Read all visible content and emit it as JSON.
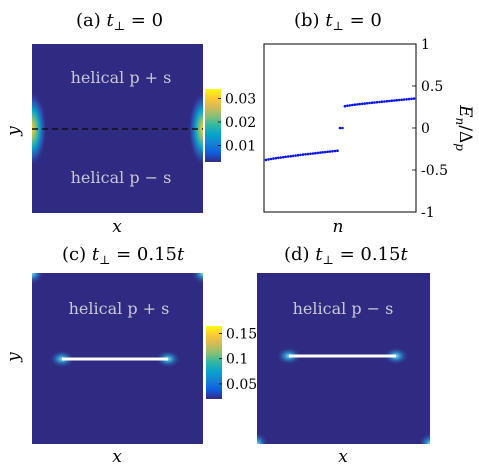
{
  "colors": {
    "background": "#2f2a82",
    "dash": "#111111",
    "defect": "#ffffff",
    "points": "#0a14e0",
    "cb_stops": [
      "#352a87",
      "#0f5cdd",
      "#1481d6",
      "#06a4ca",
      "#2eb7a4",
      "#87bf77",
      "#d1bb59",
      "#fec832",
      "#f9fb0e"
    ]
  },
  "panels": {
    "a": {
      "title_prefix": "(a)",
      "title_var": "t",
      "title_sub": "⊥",
      "title_value": " = 0",
      "upper_label": "helical p + s",
      "lower_label": "helical p − s",
      "xlabel": "x",
      "ylabel": "y"
    },
    "b": {
      "title_prefix": "(b)",
      "title_var": "t",
      "title_sub": "⊥",
      "title_value": " = 0",
      "xlabel": "n",
      "ylabel_var": "E",
      "ylabel_sub": "n",
      "ylabel_mid": "/Δ",
      "ylabel_sub2": "p"
    },
    "c": {
      "title_prefix": "(c)",
      "title_var": "t",
      "title_sub": "⊥",
      "title_value": " = 0.15",
      "title_unit": "t",
      "label": "helical p + s",
      "xlabel": "x",
      "ylabel": "y"
    },
    "d": {
      "title_prefix": "(d)",
      "title_var": "t",
      "title_sub": "⊥",
      "title_value": " = 0.15",
      "title_unit": "t",
      "label": "helical p − s",
      "xlabel": "x"
    }
  },
  "colorbars": {
    "top": {
      "ticks": [
        "0.03",
        "0.02",
        "0.01"
      ],
      "values": [
        0.03,
        0.02,
        0.01
      ],
      "range": [
        0.003,
        0.034
      ]
    },
    "bottom": {
      "ticks": [
        "0.15",
        "0.1",
        "0.05"
      ],
      "values": [
        0.15,
        0.1,
        0.05
      ],
      "range": [
        0.02,
        0.165
      ]
    }
  },
  "chart_data": [
    {
      "panel": "a",
      "type": "heatmap",
      "xlabel": "x",
      "ylabel": "y"
    },
    {
      "panel": "b",
      "type": "scatter",
      "xlabel": "n",
      "ylabel": "E_n/Δ_p",
      "ylim": [
        -1,
        1
      ],
      "yticks": [
        1,
        0.5,
        0,
        -0.5,
        -1
      ],
      "ytick_labels": [
        "1",
        "0.5",
        "0",
        "-0.5",
        "-1"
      ],
      "series": [
        {
          "n": [
            0,
            29
          ],
          "E": [
            -0.38,
            -0.27
          ]
        },
        {
          "n": [
            30,
            31
          ],
          "E": [
            0.0,
            0.0
          ]
        },
        {
          "n": [
            32,
            60
          ],
          "E": [
            0.26,
            0.35
          ]
        }
      ]
    },
    {
      "panel": "c",
      "type": "heatmap",
      "xlabel": "x",
      "ylabel": "y"
    },
    {
      "panel": "d",
      "type": "heatmap",
      "xlabel": "x"
    }
  ]
}
